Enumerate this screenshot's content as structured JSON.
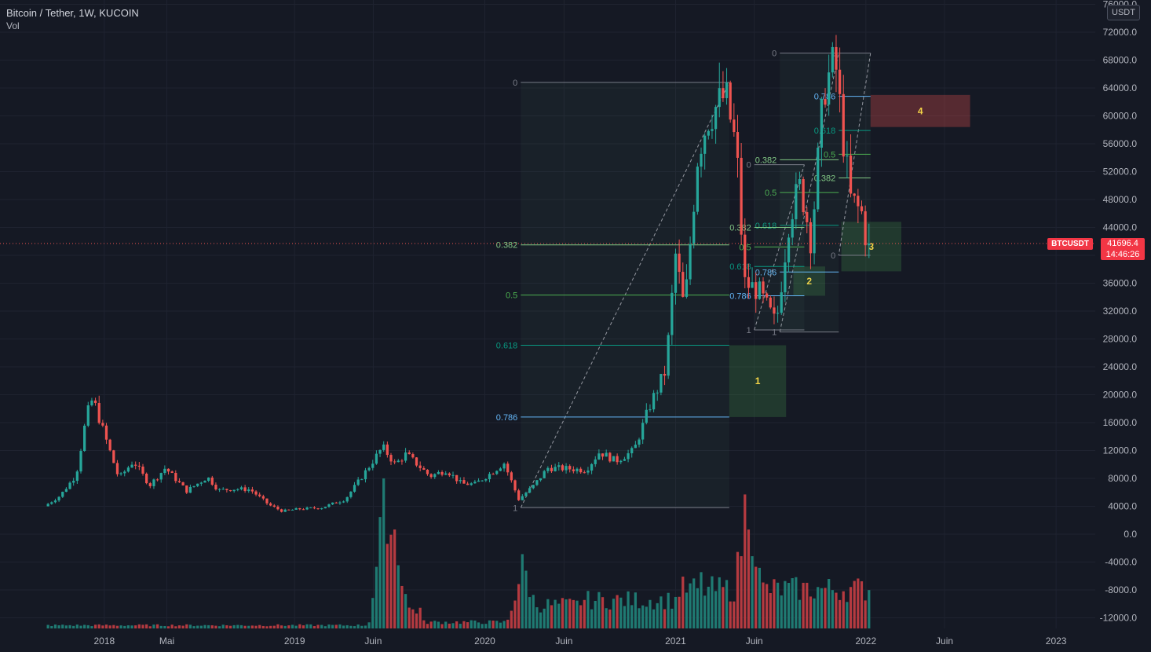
{
  "header": {
    "title": "Bitcoin / Tether, 1W, KUCOIN",
    "volume_label": "Vol"
  },
  "currency_button": "USDT",
  "price_tag": {
    "symbol": "BTCUSDT",
    "price": "41696.4",
    "countdown": "14:46:26"
  },
  "colors": {
    "background": "#151924",
    "up": "#26a69a",
    "down": "#ef5350",
    "vol_up": "#1f7a72",
    "vol_down": "#b53a40",
    "axis_text": "#b2b5be",
    "zone_label": "#f5d547"
  },
  "chart_data": {
    "type": "candlestick",
    "title": "Bitcoin / Tether, 1W, KUCOIN",
    "y_axis": {
      "ticks": [
        "-12000.0",
        "-8000.0",
        "-4000.0",
        "0.0",
        "4000.0",
        "8000.0",
        "12000.0",
        "16000.0",
        "20000.0",
        "24000.0",
        "28000.0",
        "32000.0",
        "36000.0",
        "40000.0",
        "44000.0",
        "48000.0",
        "52000.0",
        "56000.0",
        "60000.0",
        "64000.0",
        "68000.0",
        "72000.0",
        "76000.0"
      ],
      "range": [
        -14000,
        77000
      ]
    },
    "x_axis": {
      "ticks": [
        "2018",
        "Mai",
        "2019",
        "Juin",
        "2020",
        "Juin",
        "2021",
        "Juin",
        "2022",
        "Juin",
        "2023"
      ],
      "tick_positions": [
        "2018-01-01",
        "2018-05-01",
        "2019-01-01",
        "2019-06-01",
        "2020-01-01",
        "2020-06-01",
        "2021-01-01",
        "2021-06-01",
        "2022-01-01",
        "2022-06-01",
        "2023-01-01"
      ],
      "range": [
        "2017-07-15",
        "2023-02-15"
      ]
    },
    "price_path": [
      [
        "2017-09-15",
        4000
      ],
      [
        "2017-10-15",
        5500
      ],
      [
        "2017-11-15",
        8500
      ],
      [
        "2017-12-05",
        17000
      ],
      [
        "2017-12-17",
        19500
      ],
      [
        "2018-01-05",
        15000
      ],
      [
        "2018-02-05",
        8000
      ],
      [
        "2018-03-05",
        10500
      ],
      [
        "2018-04-05",
        7000
      ],
      [
        "2018-05-05",
        9500
      ],
      [
        "2018-06-15",
        6200
      ],
      [
        "2018-07-25",
        8200
      ],
      [
        "2018-08-15",
        6300
      ],
      [
        "2018-09-15",
        6500
      ],
      [
        "2018-10-15",
        6400
      ],
      [
        "2018-11-20",
        4200
      ],
      [
        "2018-12-15",
        3300
      ],
      [
        "2019-01-15",
        3600
      ],
      [
        "2019-03-01",
        3800
      ],
      [
        "2019-04-15",
        5000
      ],
      [
        "2019-05-15",
        8000
      ],
      [
        "2019-06-26",
        12500
      ],
      [
        "2019-07-20",
        10000
      ],
      [
        "2019-08-10",
        11500
      ],
      [
        "2019-09-25",
        8300
      ],
      [
        "2019-10-26",
        9200
      ],
      [
        "2019-11-25",
        7200
      ],
      [
        "2019-12-20",
        7200
      ],
      [
        "2020-01-15",
        8500
      ],
      [
        "2020-02-14",
        10200
      ],
      [
        "2020-03-13",
        5000
      ],
      [
        "2020-04-10",
        6900
      ],
      [
        "2020-05-08",
        9500
      ],
      [
        "2020-06-15",
        9400
      ],
      [
        "2020-07-20",
        9200
      ],
      [
        "2020-08-15",
        11800
      ],
      [
        "2020-09-15",
        10500
      ],
      [
        "2020-10-20",
        12000
      ],
      [
        "2020-11-20",
        18500
      ],
      [
        "2020-12-20",
        23500
      ],
      [
        "2021-01-08",
        40000
      ],
      [
        "2021-01-25",
        32000
      ],
      [
        "2021-02-20",
        55000
      ],
      [
        "2021-03-13",
        60000
      ],
      [
        "2021-04-14",
        63000
      ],
      [
        "2021-05-05",
        55000
      ],
      [
        "2021-05-20",
        36000
      ],
      [
        "2021-06-15",
        35000
      ],
      [
        "2021-07-20",
        30000
      ],
      [
        "2021-08-15",
        46000
      ],
      [
        "2021-09-05",
        50000
      ],
      [
        "2021-09-25",
        42000
      ],
      [
        "2021-10-20",
        64000
      ],
      [
        "2021-11-10",
        68000
      ],
      [
        "2021-11-28",
        55000
      ],
      [
        "2021-12-10",
        48000
      ],
      [
        "2021-12-31",
        46000
      ],
      [
        "2022-01-10",
        41696
      ]
    ],
    "volume_peaks": [
      [
        "2019-06-26",
        8500
      ],
      [
        "2019-07-10",
        6500
      ],
      [
        "2020-03-15",
        4000
      ],
      [
        "2021-02-20",
        3000
      ],
      [
        "2021-05-20",
        8800
      ],
      [
        "2021-11-20",
        2000
      ],
      [
        "2022-01-10",
        2000
      ]
    ],
    "current_price": 41696.4,
    "fib_retracements": [
      {
        "from_date": "2020-03-10",
        "to_date": "2021-04-14",
        "zero_price": 64800,
        "one_price": 3800,
        "levels": [
          {
            "label": "0",
            "price": 64800
          },
          {
            "label": "0.382",
            "price": 41500
          },
          {
            "label": "0.5",
            "price": 34300
          },
          {
            "label": "0.618",
            "price": 27100
          },
          {
            "label": "0.786",
            "price": 16800
          },
          {
            "label": "1",
            "price": 3800
          }
        ]
      },
      {
        "from_date": "2021-07-20",
        "to_date": "2021-11-10",
        "zero_price": 69000,
        "one_price": 29000,
        "levels": [
          {
            "label": "0",
            "price": 69000
          },
          {
            "label": "0.382",
            "price": 53700
          },
          {
            "label": "0.5",
            "price": 49000
          },
          {
            "label": "0.618",
            "price": 44300
          },
          {
            "label": "0.786",
            "price": 37600
          },
          {
            "label": "1",
            "price": 29000
          }
        ]
      },
      {
        "from_date": "2021-06-01",
        "to_date": "2021-09-05",
        "zero_price": 53000,
        "one_price": 29300,
        "levels": [
          {
            "label": "0",
            "price": 53000
          },
          {
            "label": "0.382",
            "price": 44000
          },
          {
            "label": "0.5",
            "price": 41200
          },
          {
            "label": "0.618",
            "price": 38400
          },
          {
            "label": "0.786",
            "price": 34200
          },
          {
            "label": "1",
            "price": 29300
          }
        ]
      },
      {
        "from_date": "2022-01-10",
        "to_date": "2021-11-10",
        "zero_price": 40000,
        "one_price": 69000,
        "levels": [
          {
            "label": "0",
            "price": 40000
          },
          {
            "label": "0.382",
            "price": 51100
          },
          {
            "label": "0.5",
            "price": 54500
          },
          {
            "label": "0.618",
            "price": 57900
          },
          {
            "label": "0.786",
            "price": 62800
          },
          {
            "label": "1",
            "price": 69000
          }
        ]
      }
    ],
    "zones": [
      {
        "label": "1",
        "from_date": "2021-04-14",
        "to_date": "2021-08-01",
        "top": 27100,
        "bottom": 16800,
        "color": "green"
      },
      {
        "label": "2",
        "from_date": "2021-08-15",
        "to_date": "2021-10-15",
        "top": 38400,
        "bottom": 34200,
        "color": "green"
      },
      {
        "label": "3",
        "from_date": "2021-11-15",
        "to_date": "2022-03-10",
        "top": 44800,
        "bottom": 37700,
        "color": "green"
      },
      {
        "label": "4",
        "from_date": "2022-01-10",
        "to_date": "2022-07-20",
        "top": 63000,
        "bottom": 58400,
        "color": "red"
      }
    ]
  }
}
